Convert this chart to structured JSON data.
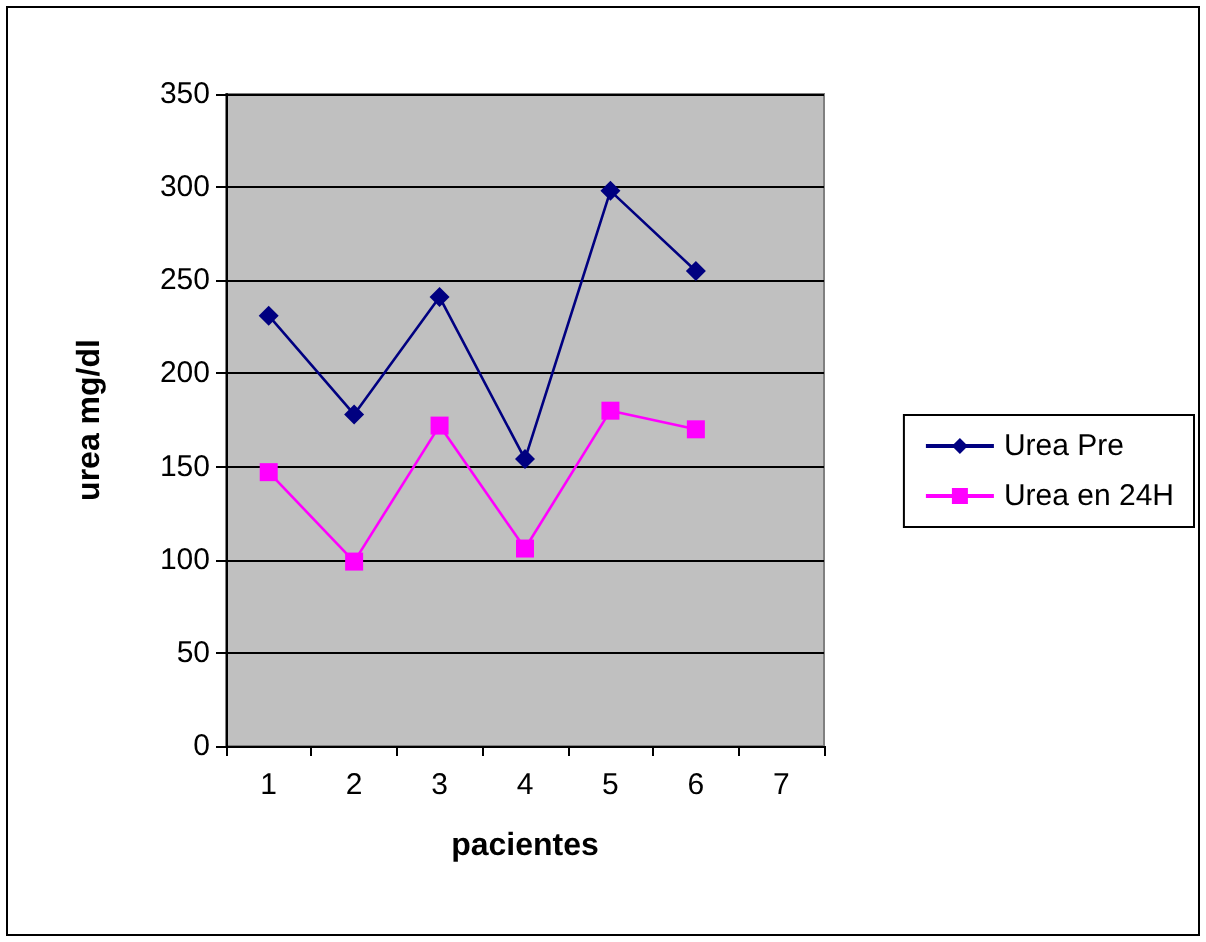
{
  "chart_data": {
    "type": "line",
    "xlabel": "pacientes",
    "ylabel": "urea mg/dl",
    "categories": [
      "1",
      "2",
      "3",
      "4",
      "5",
      "6",
      "7"
    ],
    "series": [
      {
        "name": "Urea Pre",
        "color": "#000080",
        "marker": "diamond",
        "values": [
          231,
          178,
          241,
          154,
          298,
          255,
          null
        ]
      },
      {
        "name": "Urea en 24H",
        "color": "#ff00ff",
        "marker": "square",
        "values": [
          147,
          99,
          172,
          106,
          180,
          170,
          null
        ]
      }
    ],
    "ylim": [
      0,
      350
    ],
    "yticks": [
      0,
      50,
      100,
      150,
      200,
      250,
      300,
      350
    ],
    "grid": "y",
    "legend": "right",
    "line_style": "solid"
  }
}
